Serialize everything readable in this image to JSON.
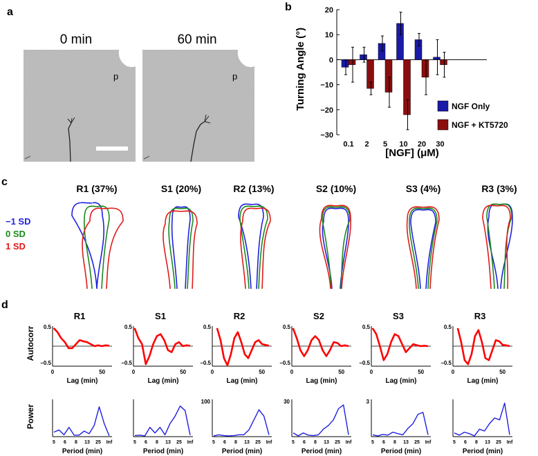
{
  "panels": {
    "a": {
      "letter": "a",
      "left_label": "0 min",
      "right_label": "60 min",
      "marker": "p"
    },
    "b": {
      "letter": "b"
    },
    "c": {
      "letter": "c"
    },
    "d": {
      "letter": "d"
    }
  },
  "chart_data": [
    {
      "id": "turning-angle",
      "type": "bar",
      "title": "",
      "xlabel": "[NGF] (μM)",
      "ylabel": "Turning Angle (°)",
      "ylim": [
        -30,
        20
      ],
      "yticks": [
        -30,
        -20,
        -10,
        0,
        10,
        20
      ],
      "categories": [
        "0.1",
        "2",
        "5",
        "10",
        "20",
        "30"
      ],
      "series": [
        {
          "name": "NGF Only",
          "color": "#1a1aa6",
          "values": [
            -3,
            2,
            6.5,
            14.5,
            8,
            1
          ],
          "errors": [
            3,
            3,
            3,
            4.5,
            2.5,
            7
          ]
        },
        {
          "name": "NGF + KT5720",
          "color": "#8b0e0e",
          "values": [
            -2,
            -11.5,
            -13,
            -22,
            -7,
            -2
          ],
          "errors": [
            7,
            2.5,
            6,
            6,
            7,
            5
          ]
        }
      ],
      "legend": "lower-right",
      "grid": false
    },
    {
      "id": "shape-modes",
      "type": "line",
      "modes": [
        "R1 (37%)",
        "S1 (20%)",
        "R2 (13%)",
        "S2 (10%)",
        "S3 (4%)",
        "R3 (3%)"
      ],
      "legend": [
        {
          "name": "−1 SD",
          "color": "#1f1fe0"
        },
        {
          "name": "0 SD",
          "color": "#1a8a1a"
        },
        {
          "name": "1 SD",
          "color": "#e01a1a"
        }
      ]
    },
    {
      "id": "autocorr",
      "type": "line",
      "modes": [
        "R1",
        "S1",
        "R2",
        "S2",
        "S3",
        "R3"
      ],
      "ylabel": "Autocorr",
      "xlabel": "Lag (min)",
      "xlim": [
        0,
        60
      ],
      "ylim": [
        -0.5,
        0.5
      ],
      "xticks": [
        "0",
        "50"
      ],
      "yticks": [
        "0.5",
        "−0.5"
      ],
      "color": "#ff0000"
    },
    {
      "id": "power",
      "type": "line",
      "ylabel": "Power",
      "xlabel": "Period (min)",
      "x": [
        5,
        6,
        7,
        8,
        10,
        13,
        17,
        20,
        25,
        30,
        40,
        60
      ],
      "xticklabels": [
        "5",
        "6",
        "8",
        "13",
        "25",
        "Inf"
      ],
      "color": "#1f1fe0",
      "panels": [
        {
          "mode": "R1",
          "yticks": [],
          "values": [
            0.12,
            0.18,
            0.05,
            0.25,
            0.04,
            0.04,
            0.15,
            0.08,
            0.3,
            0.8,
            0.35,
            0.02
          ]
        },
        {
          "mode": "S1",
          "yticks": [],
          "values": [
            0.03,
            0.04,
            0.02,
            0.25,
            0.1,
            0.25,
            0.05,
            0.35,
            0.55,
            0.82,
            0.7,
            0.04
          ]
        },
        {
          "mode": "R2",
          "yticks": [
            100
          ],
          "values": [
            0.02,
            0.05,
            0.03,
            0.02,
            0.03,
            0.05,
            0.05,
            0.18,
            0.45,
            0.72,
            0.55,
            0.05
          ]
        },
        {
          "mode": "S2",
          "yticks": [
            30
          ],
          "values": [
            0.1,
            0.02,
            0.1,
            0.04,
            0.03,
            0.05,
            0.2,
            0.3,
            0.45,
            0.75,
            0.85,
            0.05
          ]
        },
        {
          "mode": "S3",
          "yticks": [
            3
          ],
          "values": [
            0.05,
            0.02,
            0.06,
            0.04,
            0.12,
            0.08,
            0.05,
            0.22,
            0.35,
            0.6,
            0.65,
            0.05
          ]
        },
        {
          "mode": "R3",
          "yticks": [],
          "values": [
            0.1,
            0.04,
            0.12,
            0.08,
            0.02,
            0.2,
            0.15,
            0.35,
            0.5,
            0.45,
            0.9,
            0.05
          ]
        }
      ]
    }
  ]
}
